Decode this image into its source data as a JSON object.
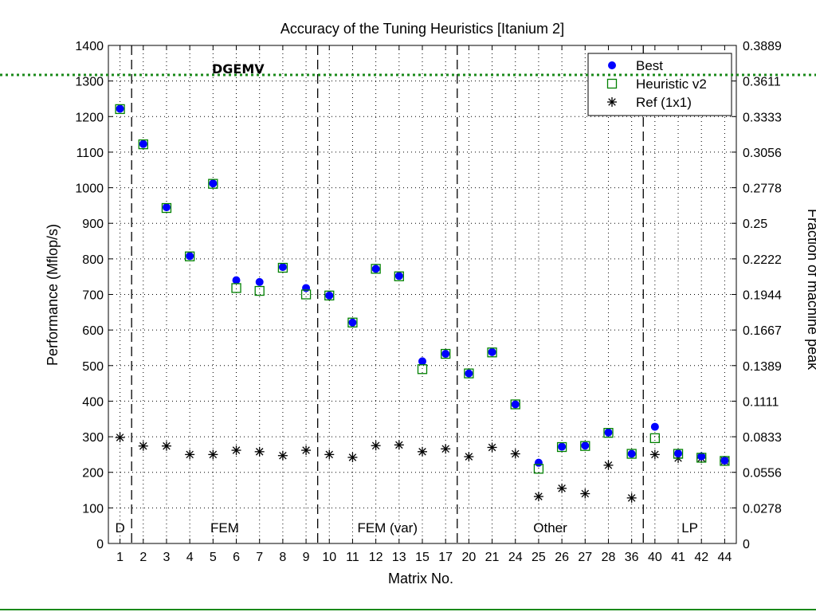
{
  "overlay": {
    "label": "DGEMV",
    "line_color": "#1a8a1a"
  },
  "chart_data": {
    "type": "scatter",
    "title": "Accuracy of the Tuning Heuristics [Itanium 2]",
    "xlabel": "Matrix No.",
    "ylabel": "Performance (Mflop/s)",
    "y2label": "Fraction of machine peak",
    "ylim": [
      0,
      1400
    ],
    "yticks": [
      0,
      100,
      200,
      300,
      400,
      500,
      600,
      700,
      800,
      900,
      1000,
      1100,
      1200,
      1300,
      1400
    ],
    "y2ticks": [
      "0",
      "0.0278",
      "0.0556",
      "0.0833",
      "0.1111",
      "0.1389",
      "0.1667",
      "0.1944",
      "0.2222",
      "0.25",
      "0.2778",
      "0.3056",
      "0.3333",
      "0.3611",
      "0.3889"
    ],
    "categories": [
      "1",
      "2",
      "3",
      "4",
      "5",
      "6",
      "7",
      "8",
      "9",
      "10",
      "11",
      "12",
      "13",
      "15",
      "17",
      "20",
      "21",
      "24",
      "25",
      "26",
      "27",
      "28",
      "36",
      "40",
      "41",
      "42",
      "44"
    ],
    "grid": true,
    "legend_position": "top-right",
    "series": [
      {
        "name": "Best",
        "marker": "filled-circle",
        "color": "#0000ff",
        "values": [
          1222,
          1123,
          945,
          808,
          1012,
          740,
          735,
          777,
          718,
          697,
          621,
          772,
          752,
          512,
          533,
          478,
          538,
          391,
          227,
          272,
          275,
          312,
          252,
          328,
          253,
          245,
          233
        ]
      },
      {
        "name": "Heuristic v2",
        "marker": "open-square",
        "color": "#008000",
        "values": [
          1221,
          1122,
          943,
          807,
          1011,
          718,
          710,
          775,
          700,
          697,
          621,
          772,
          751,
          490,
          533,
          478,
          537,
          391,
          210,
          271,
          274,
          311,
          252,
          296,
          252,
          241,
          232
        ]
      },
      {
        "name": "Ref (1x1)",
        "marker": "asterisk",
        "color": "#000000",
        "values": [
          298,
          274,
          274,
          250,
          250,
          262,
          258,
          247,
          262,
          250,
          242,
          275,
          277,
          258,
          266,
          244,
          270,
          252,
          132,
          155,
          140,
          220,
          128,
          250,
          240,
          240,
          232
        ]
      }
    ],
    "groups": [
      {
        "label": "D",
        "start": 0,
        "end": 0
      },
      {
        "label": "FEM",
        "start": 1,
        "end": 8
      },
      {
        "label": "FEM (var)",
        "start": 9,
        "end": 14
      },
      {
        "label": "Other",
        "start": 15,
        "end": 22
      },
      {
        "label": "LP",
        "start": 23,
        "end": 26
      }
    ]
  }
}
